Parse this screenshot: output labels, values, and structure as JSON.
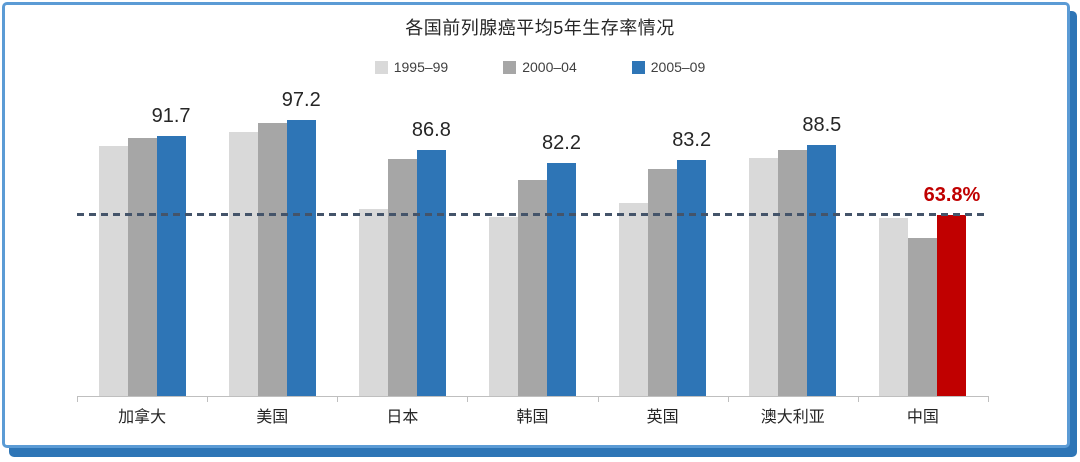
{
  "chart_data": {
    "type": "bar",
    "title": "各国前列腺癌平均5年生存率情况",
    "categories": [
      "加拿大",
      "美国",
      "日本",
      "韩国",
      "英国",
      "澳大利亚",
      "中国"
    ],
    "series": [
      {
        "name": "1995–99",
        "color": "#D9D9D9",
        "values": [
          87.9,
          92.8,
          65.9,
          63.2,
          68.1,
          83.8,
          62.6
        ]
      },
      {
        "name": "2000–04",
        "color": "#A6A6A6",
        "values": [
          91.0,
          96.2,
          83.5,
          75.9,
          80.0,
          86.8,
          55.8
        ]
      },
      {
        "name": "2005–09",
        "color": "#2E75B6",
        "values": [
          91.7,
          97.2,
          86.8,
          82.2,
          83.2,
          88.5,
          63.8
        ]
      }
    ],
    "bar_labels": [
      "91.7",
      "97.2",
      "86.8",
      "82.2",
      "83.2",
      "88.5",
      "63.8%"
    ],
    "highlight": {
      "category": "中国",
      "category_index": 6,
      "series": "2005–09",
      "bar_color": "#C00000",
      "label_color": "#C00000"
    },
    "reference_line": {
      "value": 63.8,
      "color": "#44546A",
      "style": "dashed"
    },
    "ylim": [
      0,
      100
    ],
    "grid": false,
    "legend_position": "top",
    "colors": {
      "frame_border": "#5B9BD5",
      "frame_shadow": "#2E75B6",
      "axis": "#BFBFBF",
      "label_text": "#262626"
    }
  }
}
